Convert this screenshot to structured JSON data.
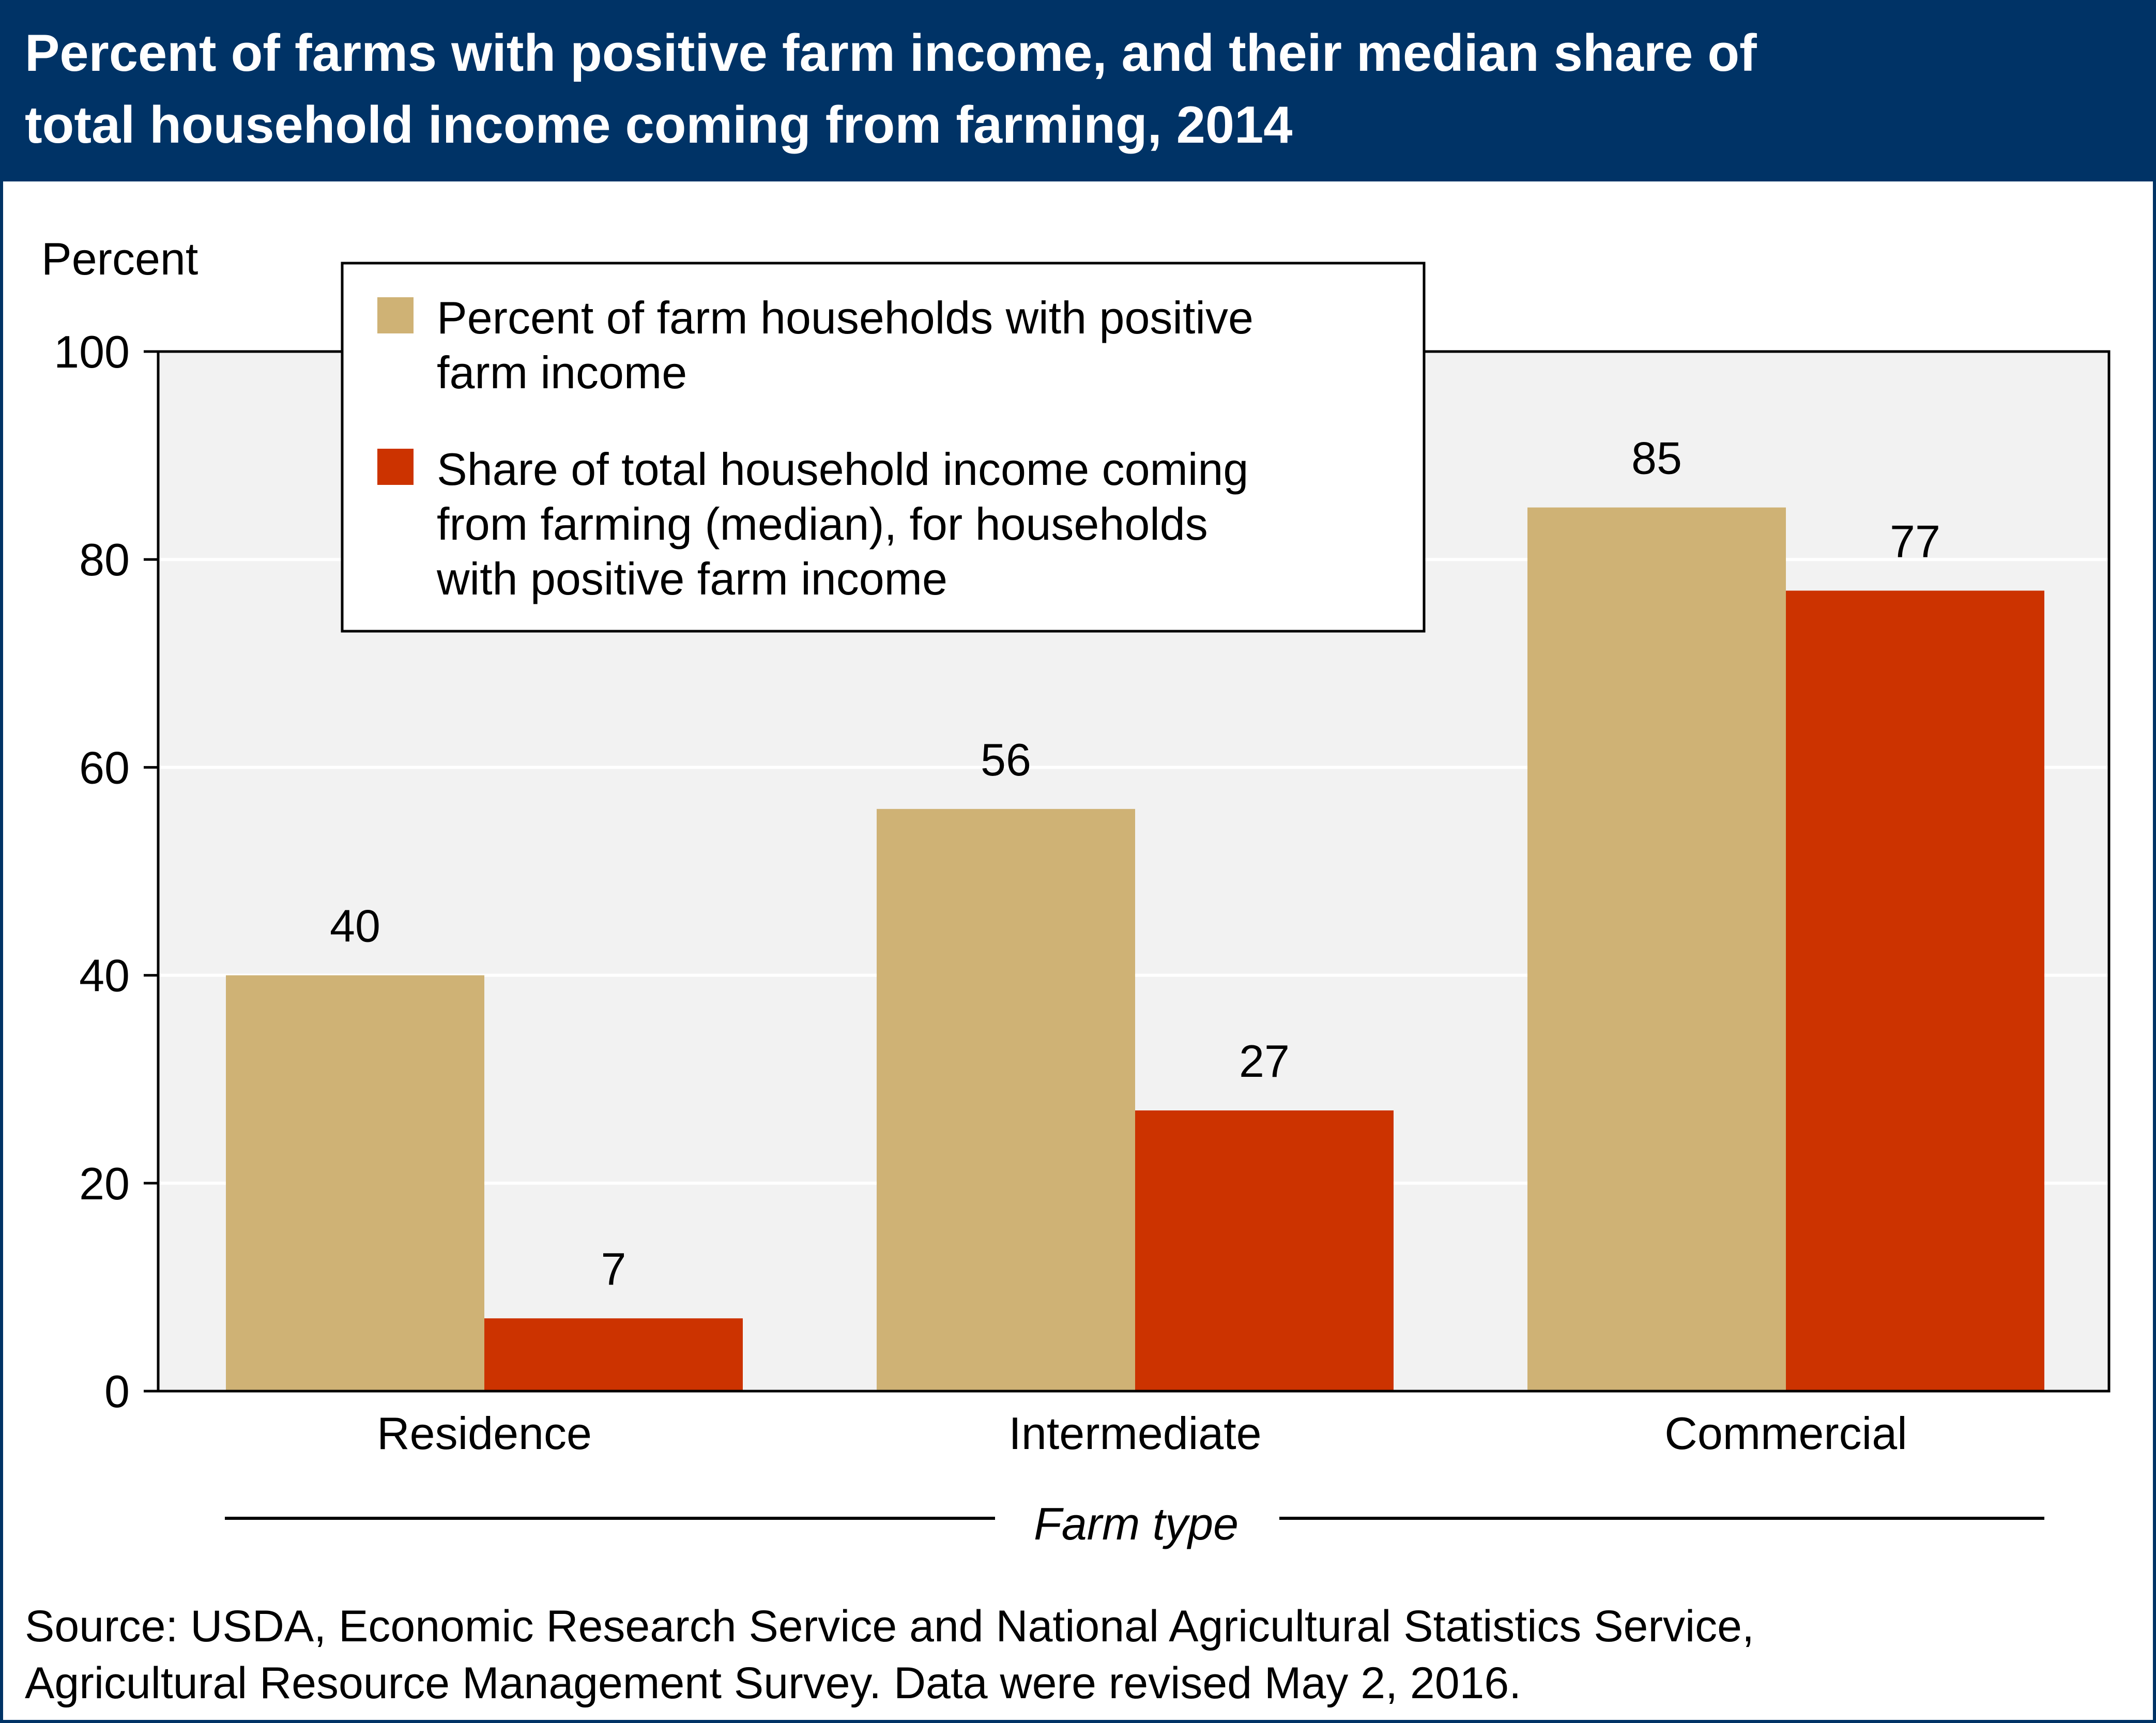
{
  "colors": {
    "title_bg": "#003366",
    "plot_bg": "#f2f2f2",
    "gridline": "#ffffff",
    "series_1": "#cfb275",
    "series_2": "#cc3300",
    "frame": "#000000"
  },
  "chart_data": {
    "type": "bar",
    "title": "Percent of farms with positive farm income, and their median share of total household income coming from farming, 2014",
    "title_lines": [
      "Percent of farms with positive farm income, and their median share of",
      "total household income coming from farming, 2014"
    ],
    "ylabel": "Percent",
    "xlabel": "Farm type",
    "ylim": [
      0,
      100
    ],
    "yticks": [
      0,
      20,
      40,
      60,
      80,
      100
    ],
    "grid": true,
    "legend_position": "top-center",
    "categories": [
      "Residence",
      "Intermediate",
      "Commercial"
    ],
    "series": [
      {
        "name": "Percent of farm households with positive farm income",
        "legend_lines": [
          "Percent of farm households with positive",
          "farm income"
        ],
        "values": [
          40,
          56,
          85
        ]
      },
      {
        "name": "Share of total household income coming from farming (median), for households with positive farm income",
        "legend_lines": [
          "Share of total household income coming",
          "from farming (median), for households",
          "with positive farm income"
        ],
        "values": [
          7,
          27,
          77
        ]
      }
    ]
  },
  "source": {
    "lines": [
      "Source: USDA, Economic Research Service and National Agricultural Statistics Service,",
      "Agricultural Resource Management Survey. Data were revised May 2, 2016."
    ]
  }
}
